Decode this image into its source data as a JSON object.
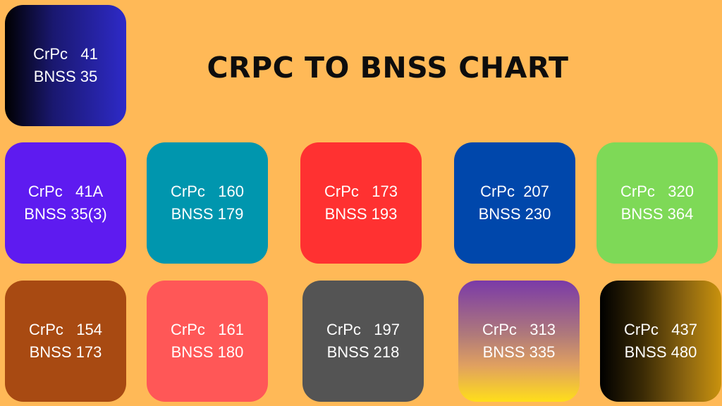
{
  "title": "CRPC TO BNSS CHART",
  "cards": [
    {
      "crpc": "CrPc   41",
      "bnss": "BNSS 35"
    },
    {
      "crpc": "CrPc   41A",
      "bnss": "BNSS 35(3)"
    },
    {
      "crpc": "CrPc   160",
      "bnss": "BNSS 179"
    },
    {
      "crpc": "CrPc   173",
      "bnss": "BNSS 193"
    },
    {
      "crpc": "CrPc  207",
      "bnss": "BNSS 230"
    },
    {
      "crpc": "CrPc   320",
      "bnss": "BNSS 364"
    },
    {
      "crpc": "CrPc   154",
      "bnss": "BNSS 173"
    },
    {
      "crpc": "CrPc   161",
      "bnss": "BNSS 180"
    },
    {
      "crpc": "CrPc   197",
      "bnss": "BNSS 218"
    },
    {
      "crpc": "CrPc   313",
      "bnss": "BNSS 335"
    },
    {
      "crpc": "CrPc   437",
      "bnss": "BNSS 480"
    }
  ],
  "colors": {
    "background": "#FFB957",
    "card_41": [
      "#000000",
      "#2E2AC8"
    ],
    "card_41a": "#5E1BF0",
    "card_160": "#0096AE",
    "card_173": "#FF3131",
    "card_207": "#0047AB",
    "card_320": "#7ED957",
    "card_154": "#A84A12",
    "card_161": "#FF5757",
    "card_197": "#545454",
    "card_313": [
      "#7A3AA8",
      "#FFDE1A"
    ],
    "card_437": [
      "#000000",
      "#C9920E"
    ]
  }
}
